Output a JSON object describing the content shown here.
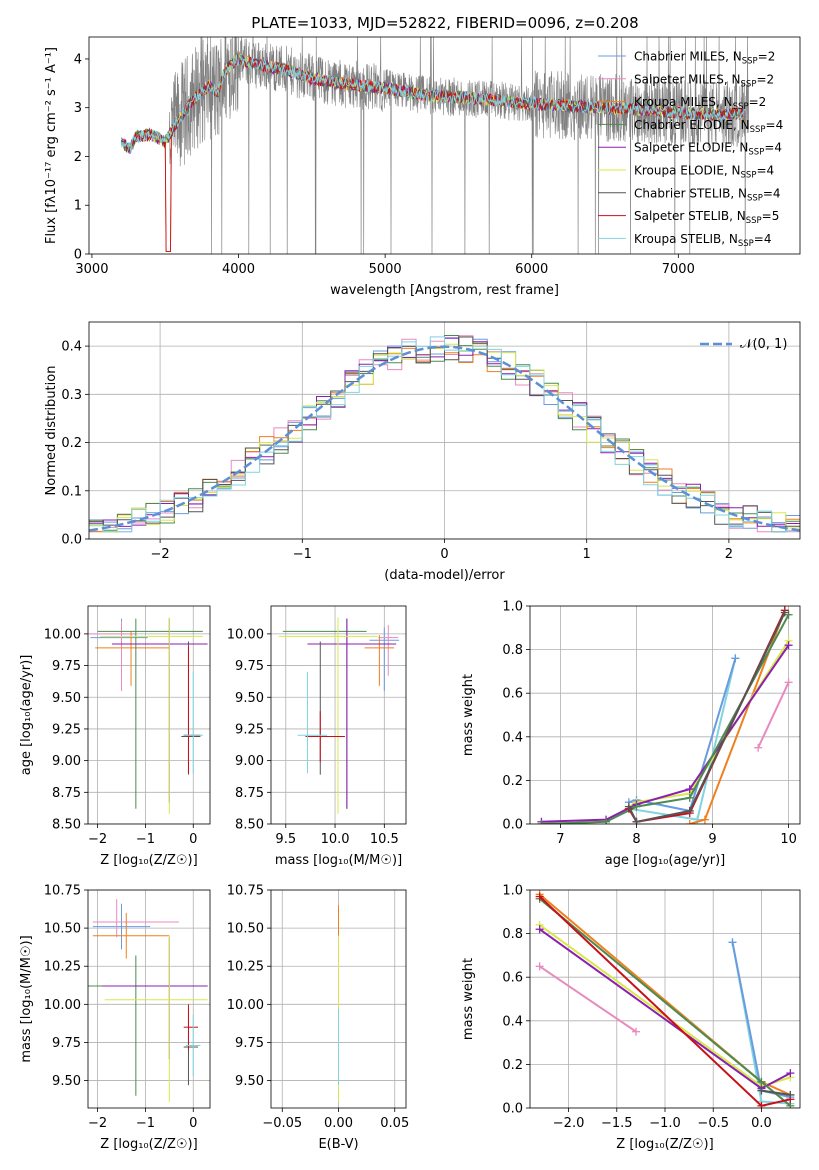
{
  "figure_title": "PLATE=1033, MJD=52822, FIBERID=0096, z=0.208",
  "colors": {
    "chabrier_miles": "#6a9be0",
    "salpeter_miles": "#e88ac0",
    "kroupa_miles": "#f07f1e",
    "chabrier_elodie": "#4d8a50",
    "salpeter_elodie": "#8b1fb0",
    "kroupa_elodie": "#d8e84a",
    "chabrier_stelib": "#555555",
    "salpeter_stelib": "#c8101a",
    "kroupa_stelib": "#7fd4e0",
    "data": "#808080",
    "normal": "#5b8fd6"
  },
  "chart_data": [
    {
      "id": "spectrum",
      "type": "line",
      "title": "PLATE=1033, MJD=52822, FIBERID=0096, z=0.208",
      "xlabel": "wavelength [Angstrom, rest frame]",
      "ylabel": "Flux [fλ10⁻¹⁷ erg cm⁻² s⁻¹ A⁻¹]",
      "xlim": [
        2980,
        7830
      ],
      "ylim": [
        0,
        4.45
      ],
      "xticks": [
        3000,
        4000,
        5000,
        6000,
        7000
      ],
      "yticks": [
        0,
        1,
        2,
        3,
        4
      ],
      "grid": false,
      "legend_position": "right",
      "legend": [
        {
          "label": "Chabrier MILES, N",
          "sub": "SSP",
          "suffix": "=2",
          "color_key": "chabrier_miles"
        },
        {
          "label": "Salpeter MILES, N",
          "sub": "SSP",
          "suffix": "=2",
          "color_key": "salpeter_miles"
        },
        {
          "label": "Kroupa MILES, N",
          "sub": "SSP",
          "suffix": "=2",
          "color_key": "kroupa_miles"
        },
        {
          "label": "Chabrier ELODIE, N",
          "sub": "SSP",
          "suffix": "=4",
          "color_key": "chabrier_elodie"
        },
        {
          "label": "Salpeter ELODIE, N",
          "sub": "SSP",
          "suffix": "=4",
          "color_key": "salpeter_elodie"
        },
        {
          "label": "Kroupa ELODIE, N",
          "sub": "SSP",
          "suffix": "=4",
          "color_key": "kroupa_elodie"
        },
        {
          "label": "Chabrier STELIB, N",
          "sub": "SSP",
          "suffix": "=4",
          "color_key": "chabrier_stelib"
        },
        {
          "label": "Salpeter STELIB, N",
          "sub": "SSP",
          "suffix": "=5",
          "color_key": "salpeter_stelib"
        },
        {
          "label": "Kroupa STELIB, N",
          "sub": "SSP",
          "suffix": "=4",
          "color_key": "kroupa_stelib"
        }
      ],
      "model_curve": {
        "x": [
          3200,
          3260,
          3300,
          3400,
          3500,
          3560,
          3600,
          3700,
          3800,
          3860,
          3900,
          3950,
          4000,
          4100,
          4300,
          4500,
          4700,
          5000,
          5300,
          5600,
          5900,
          6200,
          6500,
          6800,
          7000,
          7300,
          7450
        ],
        "y": [
          2.3,
          2.15,
          2.4,
          2.45,
          2.3,
          2.6,
          2.8,
          3.2,
          3.45,
          3.3,
          3.7,
          3.9,
          4.0,
          3.9,
          3.8,
          3.6,
          3.5,
          3.4,
          3.25,
          3.2,
          3.1,
          3.05,
          3.0,
          2.95,
          2.9,
          2.85,
          2.9
        ]
      },
      "data_start": 3530,
      "data_end": 7480
    },
    {
      "id": "residual-histogram",
      "type": "bar",
      "xlabel": "(data-model)/error",
      "ylabel": "Normed distribution",
      "xlim": [
        -2.5,
        2.5
      ],
      "ylim": [
        0,
        0.45
      ],
      "xticks": [
        -2,
        -1,
        0,
        1,
        2
      ],
      "yticks": [
        0.0,
        0.1,
        0.2,
        0.3,
        0.4
      ],
      "yticklabels": [
        "0.0",
        "0.1",
        "0.2",
        "0.3",
        "0.4"
      ],
      "grid": true,
      "legend_position": "top-right",
      "legend": [
        {
          "label": "𝒩(0, 1)",
          "color_key": "normal"
        }
      ],
      "bin_width": 0.1
    },
    {
      "id": "age-vs-metallicity",
      "type": "scatter",
      "xlabel": "Z [log₁₀(Z/Z☉)]",
      "ylabel": "age  [log₁₀(age/yr)]",
      "xlim": [
        -2.2,
        0.35
      ],
      "ylim": [
        8.5,
        10.22
      ],
      "xticks": [
        -2,
        -1,
        0
      ],
      "yticks": [
        8.5,
        8.75,
        9.0,
        9.25,
        9.5,
        9.75,
        10.0
      ],
      "yticklabels": [
        "8.50",
        "8.75",
        "9.00",
        "9.25",
        "9.50",
        "9.75",
        "10.00"
      ],
      "grid": true,
      "points": [
        {
          "x": -1.5,
          "xerr": [
            0.65,
            0.55
          ],
          "y": 9.97,
          "yerr": [
            0.4,
            0.15
          ],
          "color_key": "chabrier_miles"
        },
        {
          "x": -1.5,
          "xerr": [
            0.7,
            0.3
          ],
          "y": 10.0,
          "yerr": [
            0.45,
            0.1
          ],
          "color_key": "salpeter_miles"
        },
        {
          "x": -1.3,
          "xerr": [
            0.75,
            0.8
          ],
          "y": 9.89,
          "yerr": [
            0.3,
            0.13
          ],
          "color_key": "kroupa_miles"
        },
        {
          "x": -1.2,
          "xerr": [
            0.8,
            1.4
          ],
          "y": 10.02,
          "yerr": [
            1.4,
            0.1
          ],
          "color_key": "chabrier_elodie"
        },
        {
          "x": -0.5,
          "xerr": [
            1.2,
            0.8
          ],
          "y": 9.92,
          "yerr": [
            1.25,
            0.2
          ],
          "color_key": "salpeter_elodie"
        },
        {
          "x": -0.5,
          "xerr": [
            1.45,
            0.7
          ],
          "y": 9.98,
          "yerr": [
            1.4,
            0.15
          ],
          "color_key": "kroupa_elodie"
        },
        {
          "x": -0.1,
          "xerr": [
            0.15,
            0.25
          ],
          "y": 9.19,
          "yerr": [
            0.3,
            0.75
          ],
          "color_key": "chabrier_stelib"
        },
        {
          "x": -0.1,
          "xerr": [
            0.1,
            0.25
          ],
          "y": 9.2,
          "yerr": [
            0.3,
            0.7
          ],
          "color_key": "salpeter_stelib"
        },
        {
          "x": 0.0,
          "xerr": [
            0.2,
            0.2
          ],
          "y": 9.2,
          "yerr": [
            0.3,
            0.5
          ],
          "color_key": "kroupa_stelib"
        }
      ]
    },
    {
      "id": "age-vs-mass",
      "type": "scatter",
      "xlabel": "mass [log₁₀(M/M☉)]",
      "ylabel": "",
      "xlim": [
        9.35,
        10.72
      ],
      "ylim": [
        8.5,
        10.22
      ],
      "xticks": [
        9.5,
        10.0,
        10.5
      ],
      "xticklabels": [
        "9.5",
        "10.0",
        "10.5"
      ],
      "yticks": [
        8.5,
        8.75,
        9.0,
        9.25,
        9.5,
        9.75,
        10.0
      ],
      "yticklabels": [
        "8.50",
        "8.75",
        "9.00",
        "9.25",
        "9.50",
        "9.75",
        "10.00"
      ],
      "grid": true,
      "points": [
        {
          "x": 10.5,
          "xerr": [
            0.15,
            0.15
          ],
          "y": 9.95,
          "yerr": [
            0.4,
            0.1
          ],
          "color_key": "chabrier_miles"
        },
        {
          "x": 10.54,
          "xerr": [
            0.1,
            0.1
          ],
          "y": 9.97,
          "yerr": [
            0.3,
            0.1
          ],
          "color_key": "salpeter_miles"
        },
        {
          "x": 10.45,
          "xerr": [
            0.15,
            0.15
          ],
          "y": 9.89,
          "yerr": [
            0.3,
            0.1
          ],
          "color_key": "kroupa_miles"
        },
        {
          "x": 10.12,
          "xerr": [
            0.65,
            0.2
          ],
          "y": 10.02,
          "yerr": [
            1.4,
            0.1
          ],
          "color_key": "chabrier_elodie"
        },
        {
          "x": 10.12,
          "xerr": [
            0.4,
            0.5
          ],
          "y": 9.92,
          "yerr": [
            1.3,
            0.2
          ],
          "color_key": "salpeter_elodie"
        },
        {
          "x": 10.03,
          "xerr": [
            0.6,
            0.4
          ],
          "y": 9.98,
          "yerr": [
            1.4,
            0.15
          ],
          "color_key": "kroupa_elodie"
        },
        {
          "x": 9.85,
          "xerr": [
            0.15,
            0.25
          ],
          "y": 9.19,
          "yerr": [
            0.3,
            0.75
          ],
          "color_key": "chabrier_stelib"
        },
        {
          "x": 9.85,
          "xerr": [
            0.15,
            0.25
          ],
          "y": 9.19,
          "yerr": [
            0.2,
            0.2
          ],
          "color_key": "salpeter_stelib"
        },
        {
          "x": 9.72,
          "xerr": [
            0.1,
            0.2
          ],
          "y": 9.2,
          "yerr": [
            0.3,
            0.5
          ],
          "color_key": "kroupa_stelib"
        }
      ]
    },
    {
      "id": "mass-weight-vs-age",
      "type": "line",
      "xlabel": "age  [log₁₀(age/yr)]",
      "ylabel": "mass weight",
      "xlim": [
        6.6,
        10.15
      ],
      "ylim": [
        0,
        1.0
      ],
      "xticks": [
        7,
        8,
        9,
        10
      ],
      "yticks": [
        0,
        0.2,
        0.4,
        0.6,
        0.8,
        1.0
      ],
      "yticklabels": [
        "0.0",
        "0.2",
        "0.4",
        "0.6",
        "0.8",
        "1.0"
      ],
      "grid": true,
      "series": [
        {
          "color_key": "salpeter_miles",
          "x": [
            9.6,
            10.0
          ],
          "y": [
            0.35,
            0.65
          ]
        },
        {
          "color_key": "kroupa_stelib",
          "x": [
            7.9,
            8.8,
            9.3
          ],
          "y": [
            0.07,
            0.02,
            0.76
          ]
        },
        {
          "color_key": "chabrier_miles",
          "x": [
            7.9,
            8.0,
            8.7,
            9.3
          ],
          "y": [
            0.1,
            0.11,
            0.06,
            0.76
          ]
        },
        {
          "color_key": "kroupa_miles",
          "x": [
            8.7,
            8.9,
            9.95
          ],
          "y": [
            0.0,
            0.02,
            0.98
          ]
        },
        {
          "color_key": "kroupa_elodie",
          "x": [
            6.75,
            7.6,
            8.0,
            8.7,
            10.0
          ],
          "y": [
            0.0,
            0.01,
            0.1,
            0.14,
            0.84
          ]
        },
        {
          "color_key": "salpeter_elodie",
          "x": [
            6.75,
            7.6,
            8.0,
            8.7,
            10.0
          ],
          "y": [
            0.01,
            0.02,
            0.09,
            0.16,
            0.82
          ]
        },
        {
          "color_key": "chabrier_elodie",
          "x": [
            6.75,
            7.6,
            8.0,
            8.7,
            10.0
          ],
          "y": [
            0.0,
            0.01,
            0.08,
            0.12,
            0.96
          ]
        },
        {
          "color_key": "salpeter_stelib",
          "x": [
            7.9,
            8.0,
            8.7,
            9.95
          ],
          "y": [
            0.07,
            0.01,
            0.05,
            0.98
          ]
        },
        {
          "color_key": "chabrier_stelib",
          "x": [
            7.9,
            8.0,
            8.7,
            9.95
          ],
          "y": [
            0.08,
            0.01,
            0.06,
            0.97
          ]
        }
      ]
    },
    {
      "id": "mass-vs-metallicity",
      "type": "scatter",
      "xlabel": "Z [log₁₀(Z/Z☉)]",
      "ylabel": "mass [log₁₀(M/M☉)]",
      "xlim": [
        -2.2,
        0.35
      ],
      "ylim": [
        9.32,
        10.75
      ],
      "xticks": [
        -2,
        -1,
        0
      ],
      "yticks": [
        9.5,
        9.75,
        10.0,
        10.25,
        10.5,
        10.75
      ],
      "yticklabels": [
        "9.50",
        "9.75",
        "10.00",
        "10.25",
        "10.50",
        "10.75"
      ],
      "grid": true,
      "points": [
        {
          "x": -1.5,
          "xerr": [
            0.6,
            0.6
          ],
          "y": 10.51,
          "yerr": [
            0.15,
            0.15
          ],
          "color_key": "chabrier_miles"
        },
        {
          "x": -1.6,
          "xerr": [
            0.5,
            1.3
          ],
          "y": 10.54,
          "yerr": [
            0.1,
            0.15
          ],
          "color_key": "salpeter_miles"
        },
        {
          "x": -1.4,
          "xerr": [
            0.7,
            0.9
          ],
          "y": 10.45,
          "yerr": [
            0.15,
            0.15
          ],
          "color_key": "kroupa_miles"
        },
        {
          "x": -1.2,
          "xerr": [
            1.35,
            1.5
          ],
          "y": 10.12,
          "yerr": [
            0.72,
            0.2
          ],
          "color_key": "chabrier_elodie"
        },
        {
          "x": -0.5,
          "xerr": [
            1.4,
            0.8
          ],
          "y": 10.12,
          "yerr": [
            0.48,
            0.32
          ],
          "color_key": "salpeter_elodie"
        },
        {
          "x": -0.5,
          "xerr": [
            1.35,
            0.8
          ],
          "y": 10.03,
          "yerr": [
            0.67,
            0.42
          ],
          "color_key": "kroupa_elodie"
        },
        {
          "x": -0.1,
          "xerr": [
            0.1,
            0.2
          ],
          "y": 9.72,
          "yerr": [
            0.25,
            0.25
          ],
          "color_key": "chabrier_stelib"
        },
        {
          "x": -0.1,
          "xerr": [
            0.1,
            0.2
          ],
          "y": 9.85,
          "yerr": [
            0.15,
            0.15
          ],
          "color_key": "salpeter_stelib"
        },
        {
          "x": 0.0,
          "xerr": [
            0.15,
            0.15
          ],
          "y": 9.73,
          "yerr": [
            0.2,
            0.2
          ],
          "color_key": "kroupa_stelib"
        }
      ]
    },
    {
      "id": "mass-vs-extinction",
      "type": "scatter",
      "xlabel": "E(B-V)",
      "ylabel": "",
      "xlim": [
        -0.06,
        0.06
      ],
      "ylim": [
        9.32,
        10.75
      ],
      "xticks": [
        -0.05,
        0.0,
        0.05
      ],
      "xticklabels": [
        "−0.05",
        "0.00",
        "0.05"
      ],
      "yticks": [
        9.5,
        9.75,
        10.0,
        10.25,
        10.5,
        10.75
      ],
      "yticklabels": [
        "9.50",
        "9.75",
        "10.00",
        "10.25",
        "10.50",
        "10.75"
      ],
      "grid": true,
      "points": [
        {
          "x": 0.0,
          "xerr": [
            0,
            0
          ],
          "y": 10.5,
          "yerr": [
            0.15,
            0.15
          ],
          "color_key": "salpeter_miles"
        },
        {
          "x": 0.0,
          "xerr": [
            0,
            0
          ],
          "y": 10.45,
          "yerr": [
            0.15,
            0.2
          ],
          "color_key": "kroupa_miles"
        },
        {
          "x": 0.0,
          "xerr": [
            0,
            0
          ],
          "y": 10.12,
          "yerr": [
            0.72,
            0.2
          ],
          "color_key": "chabrier_elodie"
        },
        {
          "x": 0.0,
          "xerr": [
            0,
            0
          ],
          "y": 10.12,
          "yerr": [
            0.48,
            0.32
          ],
          "color_key": "salpeter_elodie"
        },
        {
          "x": 0.0,
          "xerr": [
            0,
            0
          ],
          "y": 10.03,
          "yerr": [
            0.67,
            0.42
          ],
          "color_key": "kroupa_elodie"
        },
        {
          "x": 0.0,
          "xerr": [
            0,
            0
          ],
          "y": 9.72,
          "yerr": [
            0.25,
            0.25
          ],
          "color_key": "kroupa_stelib"
        }
      ]
    },
    {
      "id": "mass-weight-vs-metallicity",
      "type": "line",
      "xlabel": "Z [log₁₀(Z/Z☉)]",
      "ylabel": "mass weight",
      "xlim": [
        -2.4,
        0.4
      ],
      "ylim": [
        0,
        1.0
      ],
      "xticks": [
        -2.0,
        -1.5,
        -1.0,
        -0.5,
        0.0
      ],
      "xticklabels": [
        "−2.0",
        "−1.5",
        "−1.0",
        "−0.5",
        "0.0"
      ],
      "yticks": [
        0,
        0.2,
        0.4,
        0.6,
        0.8,
        1.0
      ],
      "yticklabels": [
        "0.0",
        "0.2",
        "0.4",
        "0.6",
        "0.8",
        "1.0"
      ],
      "grid": true,
      "series": [
        {
          "color_key": "salpeter_miles",
          "x": [
            -2.3,
            -1.3
          ],
          "y": [
            0.65,
            0.35
          ]
        },
        {
          "color_key": "kroupa_stelib",
          "x": [
            -0.3,
            0.0,
            0.3
          ],
          "y": [
            0.76,
            0.03,
            0.02
          ]
        },
        {
          "color_key": "chabrier_miles",
          "x": [
            -0.3,
            0.0,
            0.3
          ],
          "y": [
            0.76,
            0.08,
            0.05
          ]
        },
        {
          "color_key": "kroupa_miles",
          "x": [
            -2.3,
            0.0,
            0.3
          ],
          "y": [
            0.98,
            0.12,
            0.06
          ]
        },
        {
          "color_key": "kroupa_elodie",
          "x": [
            -2.3,
            0.0,
            0.3
          ],
          "y": [
            0.84,
            0.1,
            0.14
          ]
        },
        {
          "color_key": "salpeter_elodie",
          "x": [
            -2.3,
            0.0,
            0.3
          ],
          "y": [
            0.82,
            0.09,
            0.16
          ]
        },
        {
          "color_key": "chabrier_elodie",
          "x": [
            -2.3,
            0.0,
            0.3
          ],
          "y": [
            0.96,
            0.12,
            0.01
          ]
        },
        {
          "color_key": "salpeter_stelib",
          "x": [
            -2.3,
            0.0,
            0.3
          ],
          "y": [
            0.97,
            0.01,
            0.04
          ]
        },
        {
          "color_key": "chabrier_stelib",
          "x": [
            0.0,
            0.3
          ],
          "y": [
            0.08,
            0.06
          ]
        }
      ]
    }
  ]
}
